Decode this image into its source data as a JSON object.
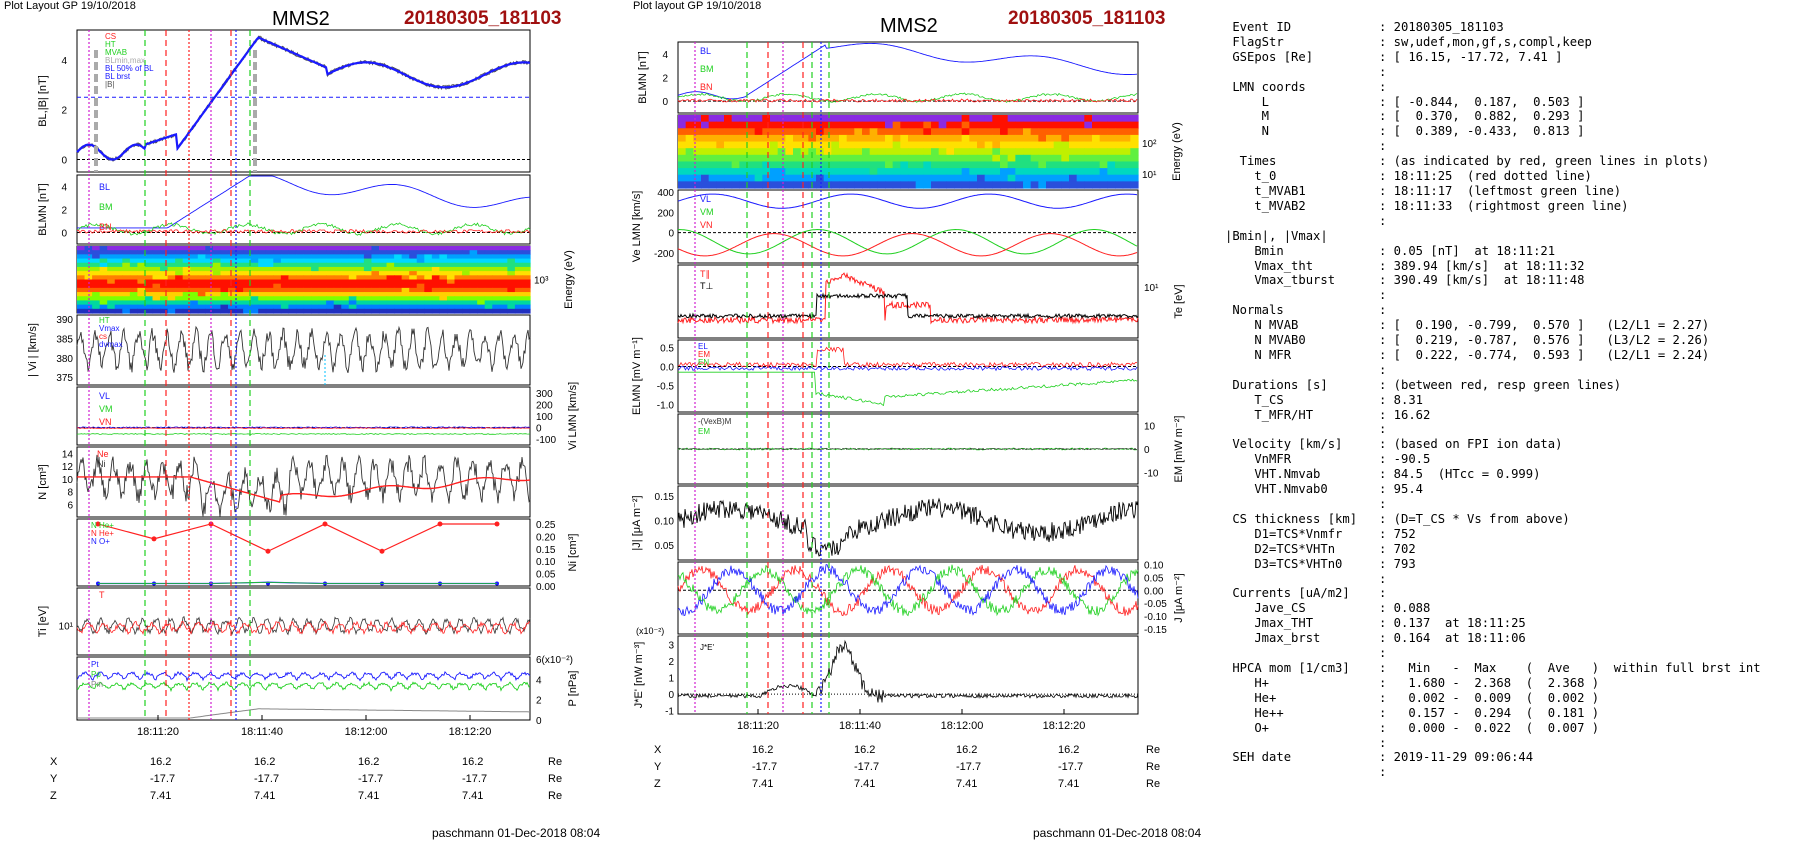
{
  "left_panel": {
    "header_left": "Plot Layout GP 19/10/2018",
    "title": "MMS2",
    "event": "20180305_181103",
    "footer": "paschmann 01-Dec-2018 08:04",
    "x_ticks": [
      "18:11:20",
      "18:11:40",
      "18:12:00",
      "18:12:20"
    ],
    "coords": {
      "rows": [
        {
          "label": "X",
          "values": [
            "16.2",
            "16.2",
            "16.2",
            "16.2"
          ],
          "unit": "Re"
        },
        {
          "label": "Y",
          "values": [
            "-17.7",
            "-17.7",
            "-17.7",
            "-17.7"
          ],
          "unit": "Re"
        },
        {
          "label": "Z",
          "values": [
            "7.41",
            "7.41",
            "7.41",
            "7.41"
          ],
          "unit": "Re"
        }
      ]
    },
    "panels": {
      "bl": {
        "ylabel": "BL,|B| [nT]",
        "ticks": [
          "4",
          "2",
          "0"
        ],
        "legend": [
          "CS",
          "HT",
          "MVAB",
          "BLmin,max",
          "BL 50% of BL",
          "BL brst",
          "|B|"
        ]
      },
      "blmn": {
        "ylabel": "BLMN [nT]",
        "ticks": [
          "4",
          "2",
          "0"
        ],
        "legend": [
          "BL",
          "BM",
          "BN"
        ]
      },
      "spec": {
        "ylabel": "Energy (eV)",
        "ticks": [
          "10³"
        ]
      },
      "vi": {
        "ylabel": "| Vi | [km/s]",
        "ticks": [
          "390",
          "385",
          "380",
          "375"
        ],
        "legend": [
          "HT",
          "Vmax",
          "cs",
          "dvmax"
        ]
      },
      "vlmn": {
        "ylabel": "Vi LMN [km/s]",
        "ticks": [
          "300",
          "200",
          "100",
          "0",
          "-100"
        ],
        "legend": [
          "VL",
          "VM",
          "VN"
        ]
      },
      "n": {
        "ylabel": "N [cm³]",
        "ticks": [
          "14",
          "12",
          "10",
          "8",
          "6"
        ],
        "legend": [
          "Ne",
          "Ni"
        ]
      },
      "ni": {
        "ylabel": "Ni [cm³]",
        "ticks": [
          "0.25",
          "0.20",
          "0.15",
          "0.10",
          "0.05",
          "0.00"
        ],
        "legend": [
          "N He+",
          "N He+",
          "N O+"
        ]
      },
      "ti": {
        "ylabel": "Ti [eV]",
        "ticks": [
          "10¹"
        ],
        "legend": [
          "T"
        ]
      },
      "p": {
        "ylabel": "P [nPa]",
        "ticks": [
          "6(x10⁻²)",
          "4",
          "2",
          "0"
        ],
        "legend": [
          "Pt",
          "Pp",
          "Pm"
        ]
      }
    }
  },
  "right_panel": {
    "header_left": "Plot layout GP 19/10/2018",
    "title": "MMS2",
    "event": "20180305_181103",
    "footer": "paschmann 01-Dec-2018 08:04",
    "x_ticks": [
      "18:11:20",
      "18:11:40",
      "18:12:00",
      "18:12:20"
    ],
    "coords": {
      "rows": [
        {
          "label": "X",
          "values": [
            "16.2",
            "16.2",
            "16.2",
            "16.2"
          ],
          "unit": "Re"
        },
        {
          "label": "Y",
          "values": [
            "-17.7",
            "-17.7",
            "-17.7",
            "-17.7"
          ],
          "unit": "Re"
        },
        {
          "label": "Z",
          "values": [
            "7.41",
            "7.41",
            "7.41",
            "7.41"
          ],
          "unit": "Re"
        }
      ]
    },
    "panels": {
      "blmn": {
        "ylabel": "BLMN [nT]",
        "ticks": [
          "4",
          "2",
          "0"
        ],
        "legend": [
          "BL",
          "BM",
          "BN"
        ]
      },
      "spec": {
        "ylabel": "Energy (eV)",
        "ticks": [
          "10²",
          "10¹"
        ]
      },
      "ve": {
        "ylabel": "Ve LMN [km/s]",
        "ticks": [
          "400",
          "200",
          "0",
          "-200"
        ],
        "legend": [
          "VL",
          "VM",
          "VN"
        ]
      },
      "te": {
        "ylabel": "Te [eV]",
        "ticks": [
          "10¹"
        ],
        "legend": [
          "T∥",
          "T⊥"
        ]
      },
      "e": {
        "ylabel": "ELMN [mV m⁻¹]",
        "ticks": [
          "0.5",
          "0.0",
          "-0.5",
          "-1.0"
        ],
        "legend": [
          "EL",
          "EM",
          "EN"
        ]
      },
      "em": {
        "ylabel": "EM [mW m⁻²]",
        "ticks": [
          "10",
          "0",
          "-10"
        ],
        "legend": [
          "-(VexB)M",
          "EM"
        ]
      },
      "j": {
        "ylabel": "|J| [μA m⁻²]",
        "ticks": [
          "0.15",
          "0.10",
          "0.05"
        ]
      },
      "jlmn": {
        "ylabel": "J [μA m⁻²]",
        "ticks": [
          "0.10",
          "0.05",
          "0.00",
          "-0.05",
          "-0.10",
          "-0.15"
        ]
      },
      "je": {
        "ylabel": "J*E' [nW m⁻³]",
        "ticks": [
          "3",
          "2",
          "1",
          "0",
          "-1"
        ],
        "scale": "(x10⁻²)",
        "legend": [
          "J*E'"
        ]
      }
    }
  },
  "info_table": {
    "rows": [
      {
        "k": " Event ID",
        "v": ": 20180305_181103"
      },
      {
        "k": " FlagStr",
        "v": ": sw,udef,mon,gf,s,compl,keep"
      },
      {
        "k": " GSEpos [Re]",
        "v": ": [ 16.15, -17.72, 7.41 ]"
      },
      {
        "k": "",
        "v": ":"
      },
      {
        "k": " LMN coords",
        "v": ":"
      },
      {
        "k": "     L",
        "v": ": [ -0.844,  0.187,  0.503 ]"
      },
      {
        "k": "     M",
        "v": ": [  0.370,  0.882,  0.293 ]"
      },
      {
        "k": "     N",
        "v": ": [  0.389, -0.433,  0.813 ]"
      },
      {
        "k": "",
        "v": ":"
      },
      {
        "k": "  Times",
        "v": ": (as indicated by red, green lines in plots)"
      },
      {
        "k": "    t_0",
        "v": ": 18:11:25  (red dotted line)"
      },
      {
        "k": "    t_MVAB1",
        "v": ": 18:11:17  (leftmost green line)"
      },
      {
        "k": "    t_MVAB2",
        "v": ": 18:11:33  (rightmost green line)"
      },
      {
        "k": "",
        "v": ":"
      },
      {
        "k": "|Bmin|, |Vmax|",
        "v": ""
      },
      {
        "k": "    Bmin",
        "v": ": 0.05 [nT]  at 18:11:21"
      },
      {
        "k": "    Vmax_tht",
        "v": ": 389.94 [km/s]  at 18:11:32"
      },
      {
        "k": "    Vmax_tburst",
        "v": ": 390.49 [km/s]  at 18:11:48"
      },
      {
        "k": "",
        "v": ":"
      },
      {
        "k": " Normals",
        "v": ":"
      },
      {
        "k": "    N MVAB",
        "v": ": [  0.190, -0.799,  0.570 ]   (L2/L1 = 2.27)"
      },
      {
        "k": "    N MVAB0",
        "v": ": [  0.219, -0.787,  0.576 ]   (L3/L2 = 2.26)"
      },
      {
        "k": "    N MFR",
        "v": ": [  0.222, -0.774,  0.593 ]   (L2/L1 = 2.24)"
      },
      {
        "k": "",
        "v": ":"
      },
      {
        "k": " Durations [s]",
        "v": ": (between red, resp green lines)"
      },
      {
        "k": "    T_CS",
        "v": ": 8.31"
      },
      {
        "k": "    T_MFR/HT",
        "v": ": 16.62"
      },
      {
        "k": "",
        "v": ":"
      },
      {
        "k": " Velocity [km/s]",
        "v": ": (based on FPI ion data)"
      },
      {
        "k": "    VnMFR",
        "v": ": -90.5"
      },
      {
        "k": "    VHT.Nmvab",
        "v": ": 84.5  (HTcc = 0.999)"
      },
      {
        "k": "    VHT.Nmvab0",
        "v": ": 95.4"
      },
      {
        "k": "",
        "v": ":"
      },
      {
        "k": " CS thickness [km]",
        "v": ": (D=T_CS * Vs from above)"
      },
      {
        "k": "    D1=TCS*Vnmfr",
        "v": ": 752"
      },
      {
        "k": "    D2=TCS*VHTn",
        "v": ": 702"
      },
      {
        "k": "    D3=TCS*VHTn0",
        "v": ": 793"
      },
      {
        "k": "",
        "v": ":"
      },
      {
        "k": " Currents [uA/m2]",
        "v": ":"
      },
      {
        "k": "    Jave_CS",
        "v": ": 0.088"
      },
      {
        "k": "    Jmax_THT",
        "v": ": 0.137  at 18:11:25"
      },
      {
        "k": "    Jmax_brst",
        "v": ": 0.164  at 18:11:06"
      },
      {
        "k": "",
        "v": ":"
      },
      {
        "k": " HPCA mom [1/cm3]",
        "v": ":   Min   -  Max    (  Ave   )  within full brst int"
      },
      {
        "k": "    H+",
        "v": ":   1.680 -  2.368  (  2.368 )"
      },
      {
        "k": "    He+",
        "v": ":   0.002 -  0.009  (  0.002 )"
      },
      {
        "k": "    He++",
        "v": ":   0.157 -  0.294  (  0.181 )"
      },
      {
        "k": "    O+",
        "v": ":   0.000 -  0.022  (  0.007 )"
      },
      {
        "k": "",
        "v": ":"
      },
      {
        "k": " SEH date",
        "v": ": 2019-11-29 09:06:44"
      },
      {
        "k": "",
        "v": ":"
      }
    ]
  },
  "colors": {
    "red_title": "#a01010",
    "blue": "#1a1aff",
    "green": "#20d020",
    "red": "#ff2020",
    "magenta": "#d020d0"
  },
  "chart_data": [
    {
      "type": "line",
      "title": "MMS2",
      "event": "20180305_181103",
      "x": [
        "18:11:20",
        "18:11:40",
        "18:12:00",
        "18:12:20"
      ],
      "events": {
        "t_MVAB1": "18:11:17",
        "t_0": "18:11:25",
        "t_MVAB2": "18:11:33"
      },
      "panels": [
        {
          "name": "BL,|B| [nT]",
          "ylim": [
            -0.5,
            5.2
          ]
        },
        {
          "name": "BLMN [nT]",
          "ylim": [
            -1,
            5
          ]
        },
        {
          "name": "Energy (eV)",
          "type": "heatmap"
        },
        {
          "name": "| Vi | [km/s]",
          "ylim": [
            373,
            391
          ]
        },
        {
          "name": "Vi LMN [km/s]",
          "ylim": [
            -150,
            350
          ]
        },
        {
          "name": "N [cm³]",
          "ylim": [
            4,
            15
          ]
        },
        {
          "name": "Ni [cm³]",
          "ylim": [
            0,
            0.27
          ]
        },
        {
          "name": "Ti [eV]",
          "scale": "log"
        },
        {
          "name": "P [nPa]",
          "ylim": [
            0,
            6
          ]
        }
      ]
    },
    {
      "type": "line",
      "title": "MMS2",
      "event": "20180305_181103",
      "x": [
        "18:11:20",
        "18:11:40",
        "18:12:00",
        "18:12:20"
      ],
      "panels": [
        {
          "name": "BLMN [nT]",
          "ylim": [
            -1,
            5
          ]
        },
        {
          "name": "Energy (eV)",
          "type": "heatmap"
        },
        {
          "name": "Ve LMN [km/s]",
          "ylim": [
            -300,
            420
          ]
        },
        {
          "name": "Te [eV]",
          "scale": "log"
        },
        {
          "name": "ELMN [mV m⁻¹]",
          "ylim": [
            -1.2,
            0.7
          ]
        },
        {
          "name": "EM [mW m⁻²]",
          "ylim": [
            -15,
            15
          ]
        },
        {
          "name": "|J| [μA m⁻²]",
          "ylim": [
            0.02,
            0.17
          ]
        },
        {
          "name": "J [μA m⁻²]",
          "ylim": [
            -0.17,
            0.11
          ]
        },
        {
          "name": "J*E' [nW m⁻³]",
          "ylim": [
            -1.2,
            3.5
          ]
        }
      ]
    }
  ]
}
